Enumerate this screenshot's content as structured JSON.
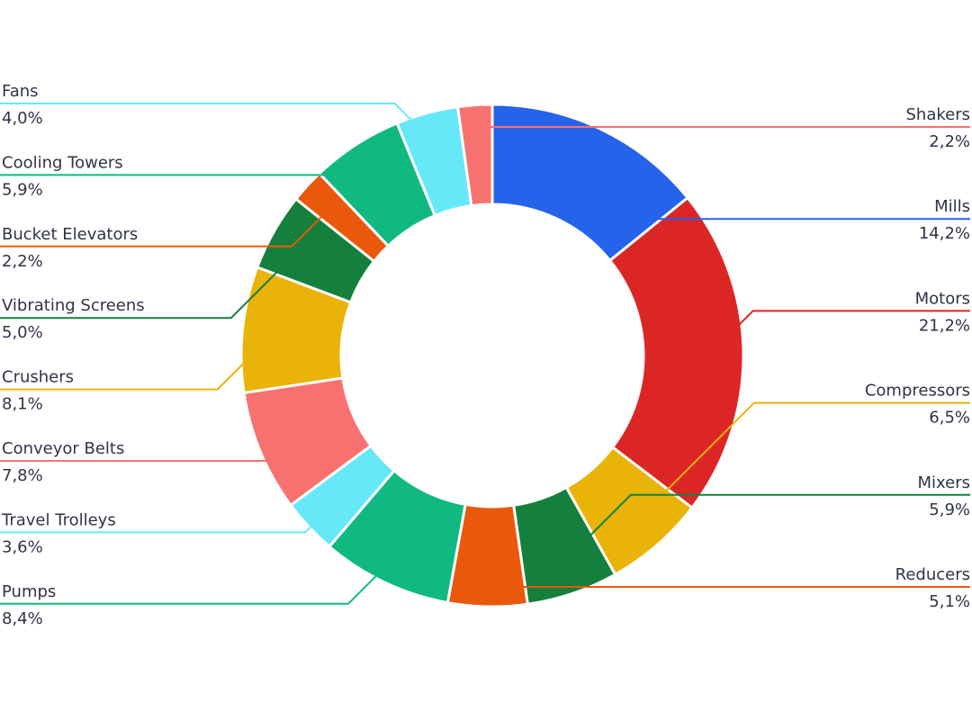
{
  "chart_data": {
    "type": "pie",
    "donut": true,
    "categories": [
      "Mills",
      "Motors",
      "Compressors",
      "Mixers",
      "Reducers",
      "Pumps",
      "Travel Trolleys",
      "Conveyor Belts",
      "Crushers",
      "Vibrating Screens",
      "Bucket Elevators",
      "Cooling Towers",
      "Fans",
      "Shakers"
    ],
    "values": [
      14.2,
      21.2,
      6.5,
      5.9,
      5.1,
      8.4,
      3.6,
      7.8,
      8.1,
      5.0,
      2.2,
      5.9,
      4.0,
      2.2
    ],
    "value_labels": [
      "14,2%",
      "21,2%",
      "6,5%",
      "5,9%",
      "5,1%",
      "8,4%",
      "3,6%",
      "7,8%",
      "8,1%",
      "5,0%",
      "2,2%",
      "5,9%",
      "4,0%",
      "2,2%"
    ],
    "colors": [
      "#2563eb",
      "#dc2626",
      "#eab308",
      "#15803d",
      "#ea580c",
      "#10b981",
      "#67e8f9",
      "#f87171",
      "#eab308",
      "#15803d",
      "#ea580c",
      "#10b981",
      "#67e8f9",
      "#f87171"
    ]
  }
}
